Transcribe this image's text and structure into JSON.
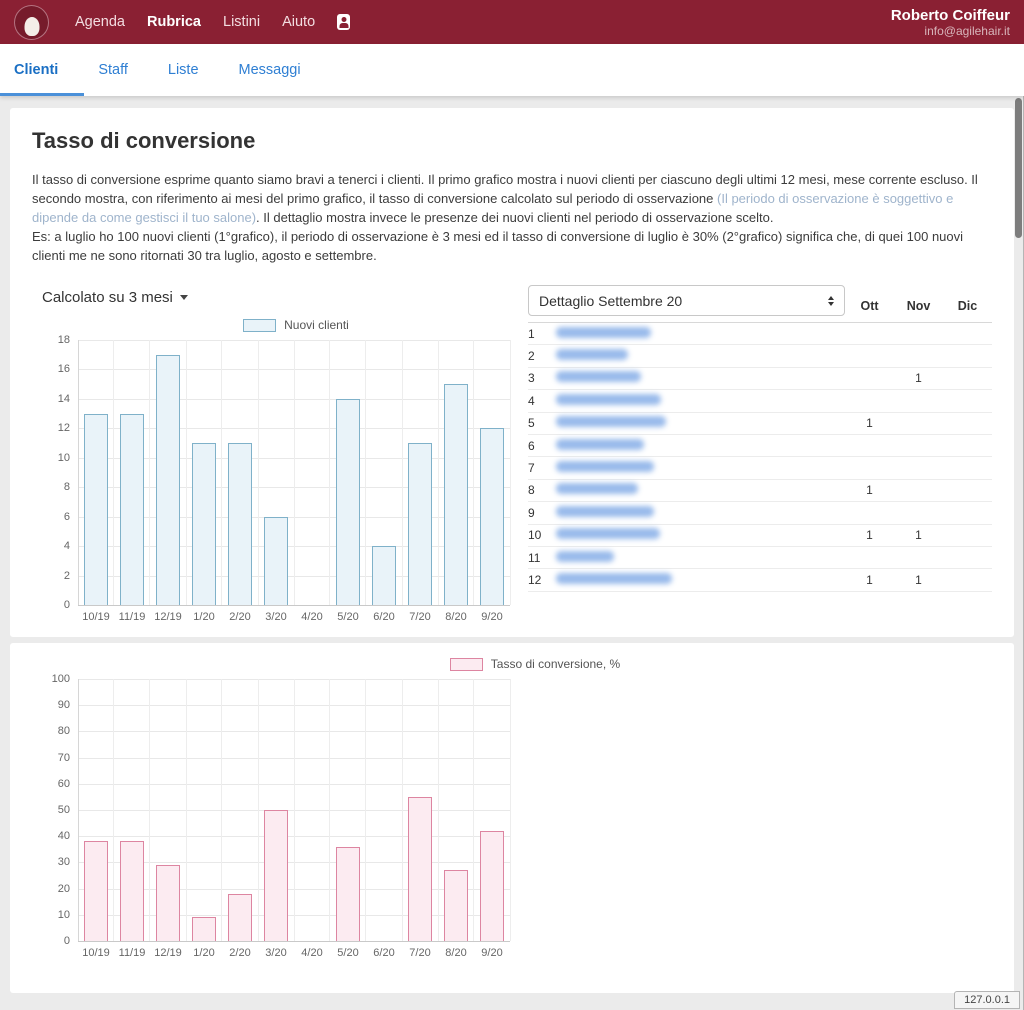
{
  "header": {
    "nav": [
      {
        "label": "Agenda",
        "active": false
      },
      {
        "label": "Rubrica",
        "active": true
      },
      {
        "label": "Listini",
        "active": false
      },
      {
        "label": "Aiuto",
        "active": false
      }
    ],
    "user_name": "Roberto Coiffeur",
    "user_email": "info@agilehair.it"
  },
  "tabs": [
    {
      "label": "Clienti",
      "active": true
    },
    {
      "label": "Staff",
      "active": false
    },
    {
      "label": "Liste",
      "active": false
    },
    {
      "label": "Messaggi",
      "active": false
    }
  ],
  "page": {
    "title": "Tasso di conversione",
    "intro_text_1": "Il tasso di conversione esprime quanto siamo bravi a tenerci i clienti. Il primo grafico mostra i nuovi clienti per ciascuno degli ultimi 12 mesi, mese corrente escluso. Il secondo mostra, con riferimento ai mesi del primo grafico, il tasso di conversione calcolato sul periodo di osservazione ",
    "intro_note": "(Il periodo di osservazione è soggettivo e dipende da come gestisci il tuo salone)",
    "intro_text_2": ". Il dettaglio mostra invece le presenze dei nuovi clienti nel periodo di osservazione scelto.",
    "intro_example": "Es: a luglio ho 100 nuovi clienti (1°grafico), il periodo di osservazione è 3 mesi ed il tasso di conversione di luglio è 30% (2°grafico) significa che, di quei 100 nuovi clienti me ne sono ritornati 30 tra luglio, agosto e settembre.",
    "period_selector_label": "Calcolato su 3 mesi"
  },
  "detail": {
    "select_value": "Dettaglio Settembre 20",
    "columns": [
      "Ott",
      "Nov",
      "Dic"
    ],
    "rows": [
      {
        "n": "1",
        "ott": "",
        "nov": "",
        "dic": "",
        "blur_width": 95
      },
      {
        "n": "2",
        "ott": "",
        "nov": "",
        "dic": "",
        "blur_width": 72
      },
      {
        "n": "3",
        "ott": "",
        "nov": "1",
        "dic": "",
        "blur_width": 85
      },
      {
        "n": "4",
        "ott": "",
        "nov": "",
        "dic": "",
        "blur_width": 105
      },
      {
        "n": "5",
        "ott": "1",
        "nov": "",
        "dic": "",
        "blur_width": 110
      },
      {
        "n": "6",
        "ott": "",
        "nov": "",
        "dic": "",
        "blur_width": 88
      },
      {
        "n": "7",
        "ott": "",
        "nov": "",
        "dic": "",
        "blur_width": 98
      },
      {
        "n": "8",
        "ott": "1",
        "nov": "",
        "dic": "",
        "blur_width": 82
      },
      {
        "n": "9",
        "ott": "",
        "nov": "",
        "dic": "",
        "blur_width": 98
      },
      {
        "n": "10",
        "ott": "1",
        "nov": "1",
        "dic": "",
        "blur_width": 104
      },
      {
        "n": "11",
        "ott": "",
        "nov": "",
        "dic": "",
        "blur_width": 58
      },
      {
        "n": "12",
        "ott": "1",
        "nov": "1",
        "dic": "",
        "blur_width": 116
      }
    ]
  },
  "chart_data": [
    {
      "type": "bar",
      "legend": "Nuovi clienti",
      "categories": [
        "10/19",
        "11/19",
        "12/19",
        "1/20",
        "2/20",
        "3/20",
        "4/20",
        "5/20",
        "6/20",
        "7/20",
        "8/20",
        "9/20"
      ],
      "values": [
        13,
        13,
        17,
        11,
        11,
        6,
        0,
        14,
        4,
        11,
        15,
        12
      ],
      "ylim": [
        0,
        18
      ],
      "ytick_step": 2,
      "grid": true,
      "legend_position": "top",
      "bar_fill": "#e9f3f9",
      "bar_border": "#7fb1c9"
    },
    {
      "type": "bar",
      "legend": "Tasso di conversione, %",
      "categories": [
        "10/19",
        "11/19",
        "12/19",
        "1/20",
        "2/20",
        "3/20",
        "4/20",
        "5/20",
        "6/20",
        "7/20",
        "8/20",
        "9/20"
      ],
      "values": [
        38,
        38,
        29,
        9,
        18,
        50,
        0,
        36,
        0,
        55,
        27,
        42
      ],
      "ylim": [
        0,
        100
      ],
      "ytick_step": 10,
      "grid": true,
      "legend_position": "top",
      "bar_fill": "#fcebf1",
      "bar_border": "#dd85a1"
    }
  ],
  "status_bar": {
    "text": "127.0.0.1"
  },
  "colors": {
    "header_bg": "#8a2033",
    "tab_active_blue": "#1a6fc4",
    "tab_underline": "#4a90d9",
    "link_blue": "#2f7fd3",
    "bar1_fill": "#e9f3f9",
    "bar1_border": "#7fb1c9",
    "bar2_fill": "#fcebf1",
    "bar2_border": "#dd85a1",
    "page_bg": "#ebebeb"
  }
}
